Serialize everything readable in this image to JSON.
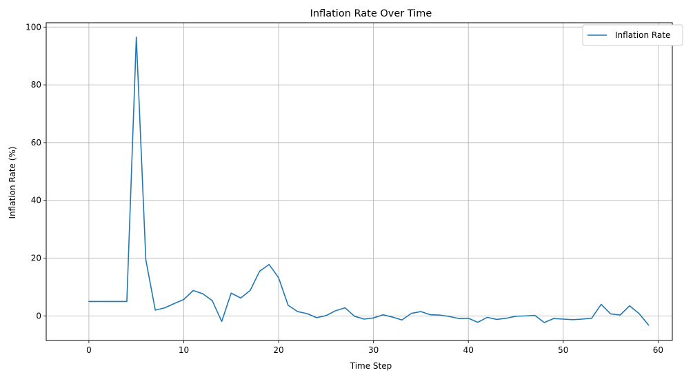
{
  "chart_data": {
    "type": "line",
    "title": "Inflation Rate Over Time",
    "xlabel": "Time Step",
    "ylabel": "Inflation Rate (%)",
    "xlim": [
      -4.5,
      61.5
    ],
    "ylim": [
      -8.5,
      101.5
    ],
    "xticks": [
      0,
      10,
      20,
      30,
      40,
      50,
      60
    ],
    "yticks": [
      0,
      20,
      40,
      60,
      80,
      100
    ],
    "grid": true,
    "legend_position": "top-right",
    "series": [
      {
        "name": "Inflation Rate",
        "color": "#1f77b4",
        "x": [
          0,
          1,
          2,
          3,
          4,
          5,
          6,
          7,
          8,
          9,
          10,
          11,
          12,
          13,
          14,
          15,
          16,
          17,
          18,
          19,
          20,
          21,
          22,
          23,
          24,
          25,
          26,
          27,
          28,
          29,
          30,
          31,
          32,
          33,
          34,
          35,
          36,
          37,
          38,
          39,
          40,
          41,
          42,
          43,
          44,
          45,
          46,
          47,
          48,
          49,
          50,
          51,
          52,
          53,
          54,
          55,
          56,
          57,
          58,
          59
        ],
        "y": [
          5.0,
          5.0,
          5.0,
          5.0,
          5.0,
          96.5,
          19.5,
          2.0,
          2.8,
          4.3,
          5.7,
          8.8,
          7.7,
          5.3,
          -1.9,
          7.9,
          6.2,
          8.8,
          15.5,
          17.8,
          13.2,
          3.7,
          1.5,
          0.8,
          -0.6,
          0.1,
          1.8,
          2.8,
          -0.1,
          -1.1,
          -0.7,
          0.4,
          -0.4,
          -1.4,
          0.9,
          1.5,
          0.4,
          0.3,
          -0.2,
          -0.9,
          -0.8,
          -2.2,
          -0.5,
          -1.2,
          -0.8,
          -0.1,
          0.0,
          0.2,
          -2.3,
          -0.9,
          -1.1,
          -1.3,
          -1.1,
          -0.8,
          4.0,
          0.7,
          0.3,
          3.5,
          0.8,
          -3.2
        ]
      }
    ]
  }
}
